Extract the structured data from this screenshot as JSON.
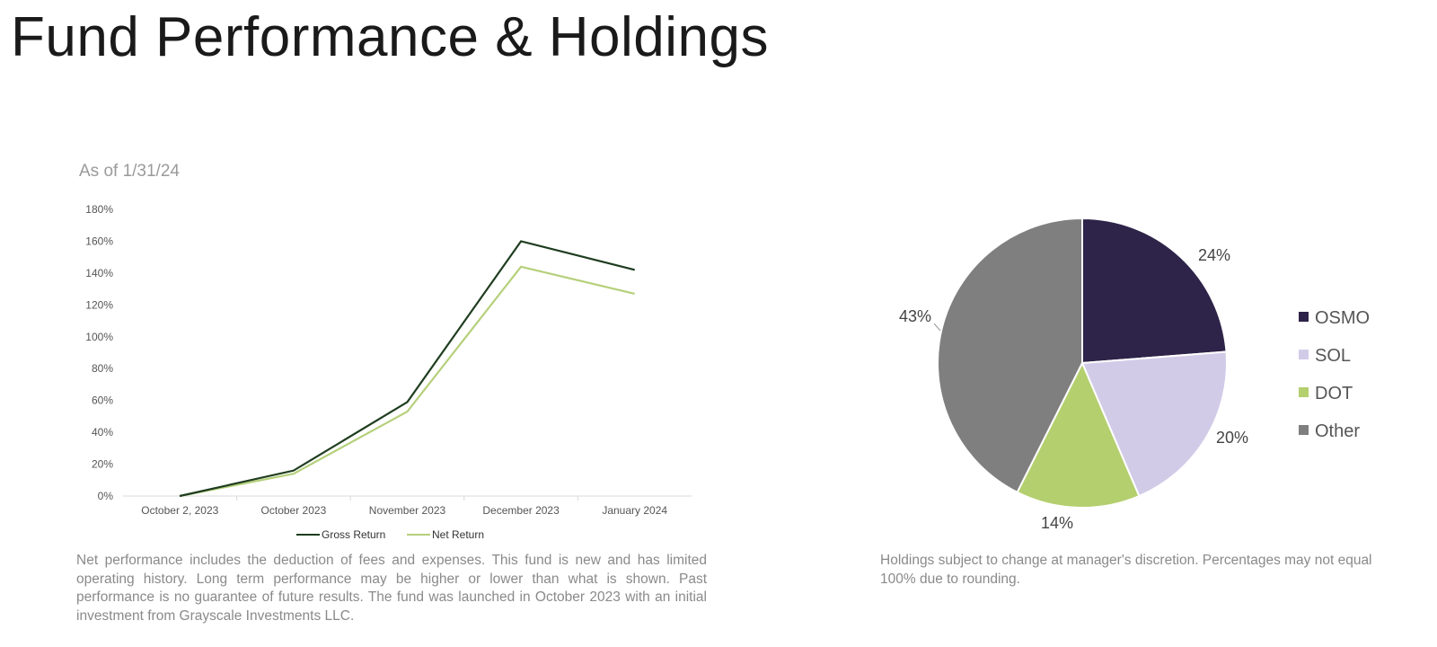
{
  "page": {
    "title": "Fund Performance & Holdings",
    "as_of": "As of 1/31/24",
    "performance_note": "Net performance includes the deduction of fees and expenses. This fund is new and has limited operating history. Long term performance may be higher or lower than what is shown. Past performance is no guarantee of future results. The fund was launched in October 2023 with an initial investment from Grayscale Investments LLC.",
    "holdings_note": "Holdings subject to change at manager's discretion.  Percentages may not equal 100% due to rounding."
  },
  "chart_data": [
    {
      "type": "line",
      "categories": [
        "October 2, 2023",
        "October 2023",
        "November 2023",
        "December 2023",
        "January 2024"
      ],
      "yticks": [
        "0%",
        "20%",
        "40%",
        "60%",
        "80%",
        "100%",
        "120%",
        "140%",
        "160%",
        "180%"
      ],
      "ylim": [
        0,
        180
      ],
      "series": [
        {
          "name": "Gross Return",
          "values": [
            0,
            16,
            59,
            160,
            142
          ],
          "color": "#1f3d1f"
        },
        {
          "name": "Net Return",
          "values": [
            0,
            14,
            53,
            144,
            127
          ],
          "color": "#b5d07a"
        }
      ],
      "legend": "bottom"
    },
    {
      "type": "pie",
      "slices": [
        {
          "name": "OSMO",
          "value": 24,
          "label": "24%",
          "color": "#2e2348"
        },
        {
          "name": "SOL",
          "value": 20,
          "label": "20%",
          "color": "#d2cbe8"
        },
        {
          "name": "DOT",
          "value": 14,
          "label": "14%",
          "color": "#b4cf6e"
        },
        {
          "name": "Other",
          "value": 43,
          "label": "43%",
          "color": "#7f7f7f"
        }
      ],
      "legend": "right"
    }
  ]
}
